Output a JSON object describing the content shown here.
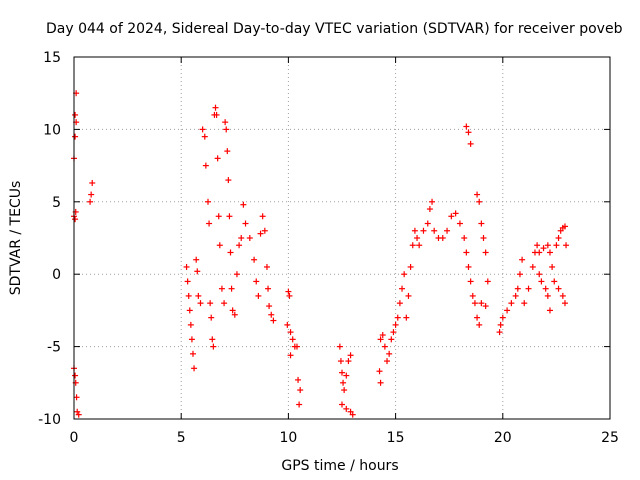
{
  "chart_data": {
    "type": "scatter",
    "title": "Day 044 of 2024, Sidereal Day-to-day VTEC variation (SDTVAR) for receiver poveb",
    "xlabel": "GPS time / hours",
    "ylabel": "SDTVAR / TECUs",
    "xlim": [
      0,
      25
    ],
    "ylim": [
      -10,
      15
    ],
    "xticks": [
      "0",
      "5",
      "10",
      "15",
      "20",
      "25"
    ],
    "yticks": [
      "-10",
      "-5",
      "0",
      "5",
      "10",
      "15"
    ],
    "grid": true,
    "marker": "+",
    "series": [
      {
        "name": "SDTVAR",
        "color": "#ff0000",
        "points": [
          [
            0.0,
            4.0
          ],
          [
            0.0,
            8.0
          ],
          [
            0.05,
            9.5
          ],
          [
            0.05,
            11.0
          ],
          [
            0.1,
            12.5
          ],
          [
            0.1,
            10.5
          ],
          [
            0.05,
            3.8
          ],
          [
            0.08,
            4.3
          ],
          [
            0.0,
            -6.5
          ],
          [
            0.05,
            -7.0
          ],
          [
            0.08,
            -7.5
          ],
          [
            0.12,
            -8.5
          ],
          [
            0.15,
            -9.5
          ],
          [
            0.22,
            -9.7
          ],
          [
            0.75,
            5.0
          ],
          [
            0.8,
            5.5
          ],
          [
            0.85,
            6.3
          ],
          [
            5.25,
            0.5
          ],
          [
            5.3,
            -0.5
          ],
          [
            5.35,
            -1.5
          ],
          [
            5.4,
            -2.5
          ],
          [
            5.45,
            -3.5
          ],
          [
            5.5,
            -4.5
          ],
          [
            5.55,
            -5.5
          ],
          [
            5.6,
            -6.5
          ],
          [
            5.7,
            1.0
          ],
          [
            5.75,
            0.2
          ],
          [
            5.8,
            -1.5
          ],
          [
            5.9,
            -2.0
          ],
          [
            6.0,
            10.0
          ],
          [
            6.1,
            9.5
          ],
          [
            6.15,
            7.5
          ],
          [
            6.25,
            5.0
          ],
          [
            6.3,
            3.5
          ],
          [
            6.35,
            -2.0
          ],
          [
            6.4,
            -3.0
          ],
          [
            6.45,
            -4.5
          ],
          [
            6.5,
            -5.0
          ],
          [
            6.55,
            11.0
          ],
          [
            6.6,
            11.5
          ],
          [
            6.65,
            11.0
          ],
          [
            6.7,
            8.0
          ],
          [
            6.75,
            4.0
          ],
          [
            6.8,
            2.0
          ],
          [
            6.9,
            -1.0
          ],
          [
            7.0,
            -2.0
          ],
          [
            7.05,
            10.5
          ],
          [
            7.1,
            10.0
          ],
          [
            7.15,
            8.5
          ],
          [
            7.2,
            6.5
          ],
          [
            7.25,
            4.0
          ],
          [
            7.3,
            1.5
          ],
          [
            7.35,
            -1.0
          ],
          [
            7.4,
            -2.5
          ],
          [
            7.5,
            -2.8
          ],
          [
            7.6,
            0.0
          ],
          [
            7.7,
            2.0
          ],
          [
            7.8,
            2.5
          ],
          [
            7.9,
            4.8
          ],
          [
            8.0,
            3.5
          ],
          [
            8.2,
            2.5
          ],
          [
            8.4,
            1.0
          ],
          [
            8.5,
            -0.5
          ],
          [
            8.6,
            -1.5
          ],
          [
            8.7,
            2.8
          ],
          [
            8.8,
            4.0
          ],
          [
            8.9,
            3.0
          ],
          [
            9.0,
            0.5
          ],
          [
            9.05,
            -1.0
          ],
          [
            9.1,
            -2.2
          ],
          [
            9.2,
            -2.8
          ],
          [
            9.3,
            -3.2
          ],
          [
            10.0,
            -1.2
          ],
          [
            10.05,
            -1.5
          ],
          [
            9.95,
            -3.5
          ],
          [
            10.1,
            -4.0
          ],
          [
            10.2,
            -4.5
          ],
          [
            10.3,
            -5.0
          ],
          [
            10.1,
            -5.6
          ],
          [
            10.4,
            -5.0
          ],
          [
            10.45,
            -7.3
          ],
          [
            10.55,
            -8.0
          ],
          [
            10.5,
            -9.0
          ],
          [
            12.4,
            -5.0
          ],
          [
            12.45,
            -6.0
          ],
          [
            12.5,
            -6.8
          ],
          [
            12.55,
            -7.5
          ],
          [
            12.6,
            -8.0
          ],
          [
            12.7,
            -7.0
          ],
          [
            12.8,
            -6.0
          ],
          [
            12.9,
            -5.6
          ],
          [
            12.5,
            -9.0
          ],
          [
            12.7,
            -9.3
          ],
          [
            12.9,
            -9.5
          ],
          [
            13.0,
            -9.7
          ],
          [
            14.25,
            -6.7
          ],
          [
            14.3,
            -7.5
          ],
          [
            14.3,
            -4.5
          ],
          [
            14.4,
            -4.2
          ],
          [
            14.5,
            -5.0
          ],
          [
            14.6,
            -6.0
          ],
          [
            14.7,
            -5.5
          ],
          [
            14.8,
            -4.5
          ],
          [
            14.9,
            -4.0
          ],
          [
            15.0,
            -3.5
          ],
          [
            15.1,
            -3.0
          ],
          [
            15.2,
            -2.0
          ],
          [
            15.3,
            -1.0
          ],
          [
            15.4,
            0.0
          ],
          [
            15.5,
            -3.0
          ],
          [
            15.6,
            -1.5
          ],
          [
            15.7,
            0.5
          ],
          [
            15.8,
            2.0
          ],
          [
            15.9,
            3.0
          ],
          [
            16.0,
            2.5
          ],
          [
            16.1,
            2.0
          ],
          [
            16.3,
            3.0
          ],
          [
            16.5,
            3.5
          ],
          [
            16.6,
            4.5
          ],
          [
            16.7,
            5.0
          ],
          [
            16.8,
            3.0
          ],
          [
            17.0,
            2.5
          ],
          [
            17.2,
            2.5
          ],
          [
            17.4,
            3.0
          ],
          [
            17.6,
            4.0
          ],
          [
            17.8,
            4.2
          ],
          [
            18.0,
            3.5
          ],
          [
            18.2,
            2.5
          ],
          [
            18.3,
            1.5
          ],
          [
            18.4,
            0.5
          ],
          [
            18.5,
            -0.5
          ],
          [
            18.6,
            -1.5
          ],
          [
            18.7,
            -2.0
          ],
          [
            18.8,
            -3.0
          ],
          [
            18.9,
            -3.5
          ],
          [
            18.3,
            10.2
          ],
          [
            18.4,
            9.8
          ],
          [
            18.5,
            9.0
          ],
          [
            18.8,
            5.5
          ],
          [
            18.9,
            5.0
          ],
          [
            19.0,
            3.5
          ],
          [
            19.1,
            2.5
          ],
          [
            19.2,
            1.5
          ],
          [
            19.0,
            -2.0
          ],
          [
            19.2,
            -2.2
          ],
          [
            19.3,
            -0.5
          ],
          [
            19.85,
            -4.0
          ],
          [
            19.9,
            -3.5
          ],
          [
            20.0,
            -3.0
          ],
          [
            20.2,
            -2.5
          ],
          [
            20.4,
            -2.0
          ],
          [
            20.6,
            -1.5
          ],
          [
            20.7,
            -1.0
          ],
          [
            20.8,
            0.0
          ],
          [
            20.9,
            1.0
          ],
          [
            21.0,
            -2.0
          ],
          [
            21.2,
            -1.0
          ],
          [
            21.4,
            0.5
          ],
          [
            21.5,
            1.5
          ],
          [
            21.6,
            2.0
          ],
          [
            21.7,
            0.0
          ],
          [
            21.8,
            -0.5
          ],
          [
            22.0,
            -1.0
          ],
          [
            22.1,
            -1.5
          ],
          [
            22.2,
            -2.5
          ],
          [
            21.7,
            1.5
          ],
          [
            21.9,
            1.8
          ],
          [
            22.1,
            2.0
          ],
          [
            22.2,
            1.5
          ],
          [
            22.3,
            0.5
          ],
          [
            22.4,
            -0.5
          ],
          [
            22.6,
            -1.0
          ],
          [
            22.8,
            -1.5
          ],
          [
            22.9,
            -2.0
          ],
          [
            22.5,
            2.0
          ],
          [
            22.6,
            2.5
          ],
          [
            22.7,
            3.0
          ],
          [
            22.8,
            3.2
          ],
          [
            22.9,
            3.3
          ],
          [
            22.95,
            2.0
          ]
        ]
      }
    ]
  }
}
